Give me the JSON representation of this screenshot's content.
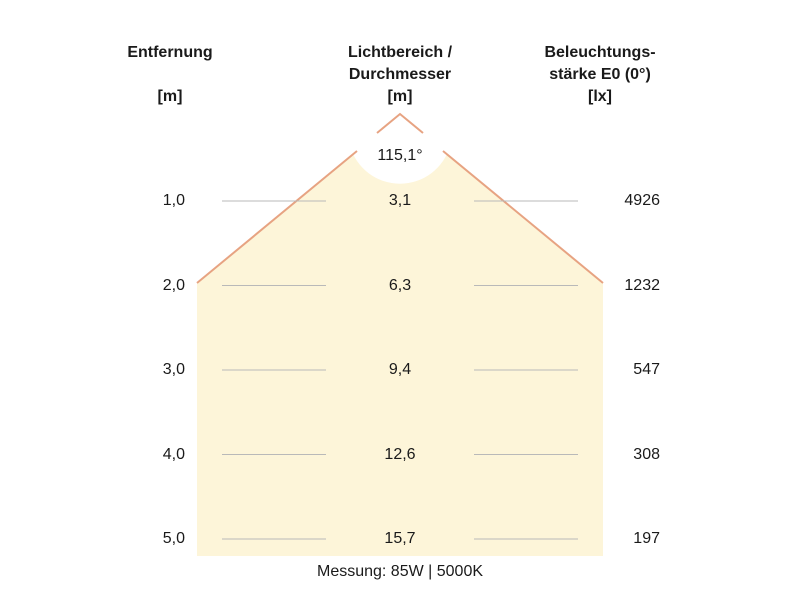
{
  "headers": {
    "distance": {
      "label": "Entfernung",
      "unit": "[m]"
    },
    "diameter": {
      "label_line1": "Lichtbereich /",
      "label_line2": "Durchmesser",
      "unit": "[m]"
    },
    "illuminance": {
      "label_line1": "Beleuchtungs-",
      "label_line2": "stärke E0 (0°)",
      "unit": "[lx]"
    }
  },
  "beam_angle": "115,1°",
  "rows": [
    {
      "distance": "1,0",
      "diameter": "3,1",
      "illuminance": "4926"
    },
    {
      "distance": "2,0",
      "diameter": "6,3",
      "illuminance": "1232"
    },
    {
      "distance": "3,0",
      "diameter": "9,4",
      "illuminance": "547"
    },
    {
      "distance": "4,0",
      "diameter": "12,6",
      "illuminance": "308"
    },
    {
      "distance": "5,0",
      "diameter": "15,7",
      "illuminance": "197"
    }
  ],
  "footer": "Messung: 85W | 5000K",
  "colors": {
    "light_area": "#fdf5d9",
    "beam_line": "#e7a382",
    "guide_line": "#b9b9b9"
  }
}
